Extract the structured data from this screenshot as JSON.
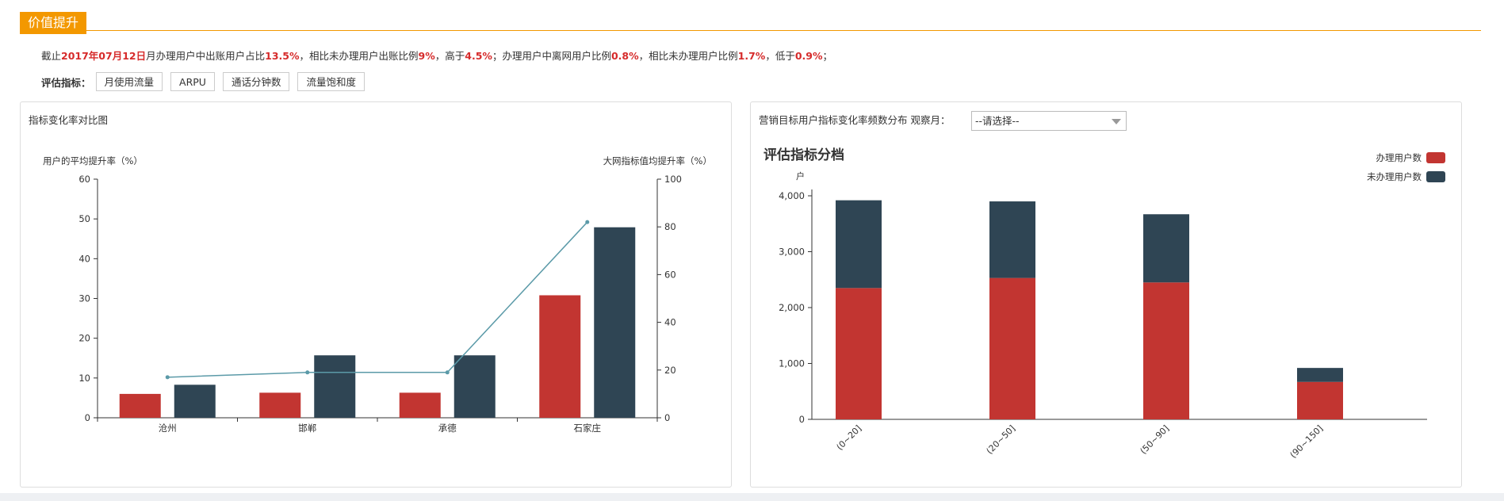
{
  "header": {
    "title": "价值提升"
  },
  "summary": {
    "t1": "截止",
    "date": "2017年07月12日",
    "t2": "月办理用户中出账用户占比",
    "v1": "13.5%",
    "t3": "，相比未办理用户出账比例",
    "v2": "9%",
    "t4": "，高于",
    "v3": "4.5%",
    "t5": "；办理用户中离网用户比例",
    "v4": "0.8%",
    "t6": "，相比未办理用户比例",
    "v5": "1.7%",
    "t7": "，低于",
    "v6": "0.9%",
    "t8": "；"
  },
  "metrics": {
    "label": "评估指标：",
    "buttons": [
      "月使用流量",
      "ARPU",
      "通话分钟数",
      "流量饱和度"
    ]
  },
  "left_panel": {
    "title": "指标变化率对比图"
  },
  "right_panel": {
    "title": "营销目标用户指标变化率频数分布 观察月：",
    "select_value": "--请选择--"
  },
  "chart_data": [
    {
      "type": "bar",
      "categories": [
        "沧州",
        "邯郸",
        "承德",
        "石家庄"
      ],
      "series": [
        {
          "values": [
            6,
            6.3,
            6.3,
            30.8
          ],
          "color": "#c23531",
          "axis": "left"
        },
        {
          "values": [
            8.3,
            15.7,
            15.7,
            47.9
          ],
          "color": "#2f4554",
          "axis": "left"
        },
        {
          "type": "line",
          "values": [
            17,
            19,
            19,
            82
          ],
          "color": "#5b9aa8",
          "axis": "right"
        }
      ],
      "ylabel": "用户的平均提升率（%）",
      "ylabel_right": "大网指标值均提升率（%）",
      "ylim": [
        0,
        60
      ],
      "ylim_right": [
        0,
        100
      ],
      "yticks": [
        0,
        10,
        20,
        30,
        40,
        50,
        60
      ],
      "yticks_right": [
        0,
        20,
        40,
        60,
        80,
        100
      ],
      "grid": false
    },
    {
      "type": "bar",
      "stacked": true,
      "title": "评估指标分档",
      "ylabel": "户",
      "categories": [
        "(0~20]",
        "(20~50]",
        "(50~90]",
        "(90~150]"
      ],
      "series": [
        {
          "name": "办理用户数",
          "values": [
            2350,
            2530,
            2450,
            670
          ],
          "color": "#c23531"
        },
        {
          "name": "未办理用户数",
          "values": [
            1570,
            1370,
            1220,
            250
          ],
          "color": "#2f4554"
        }
      ],
      "ylim": [
        0,
        4000
      ],
      "yticks": [
        "0",
        "1,000",
        "2,000",
        "3,000",
        "4,000"
      ],
      "legend": "top-right",
      "grid": false
    }
  ]
}
